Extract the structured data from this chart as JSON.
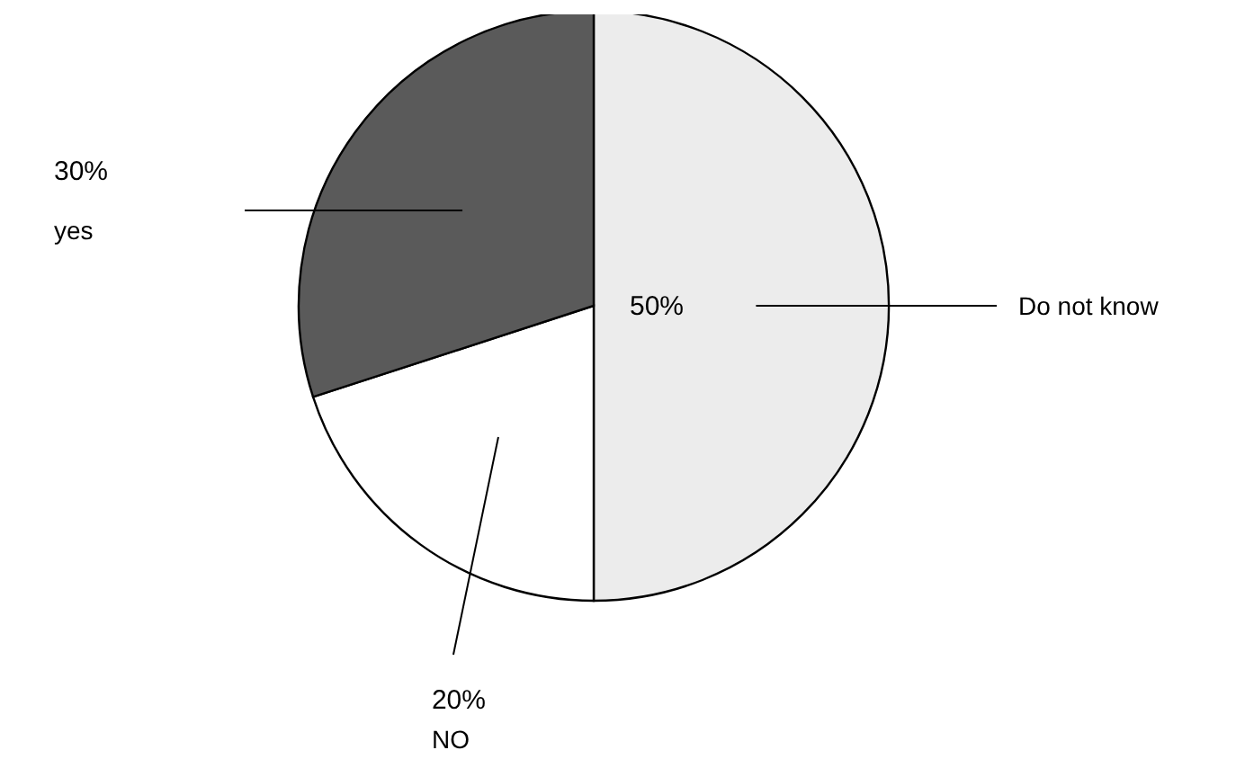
{
  "chart_data": {
    "type": "pie",
    "categories": [
      "Do not know",
      "NO",
      "yes"
    ],
    "values": [
      50,
      20,
      30
    ],
    "colors": [
      "#ececec",
      "#ffffff",
      "#5a5a5a"
    ],
    "value_labels": [
      "50%",
      "20%",
      "30%"
    ]
  }
}
